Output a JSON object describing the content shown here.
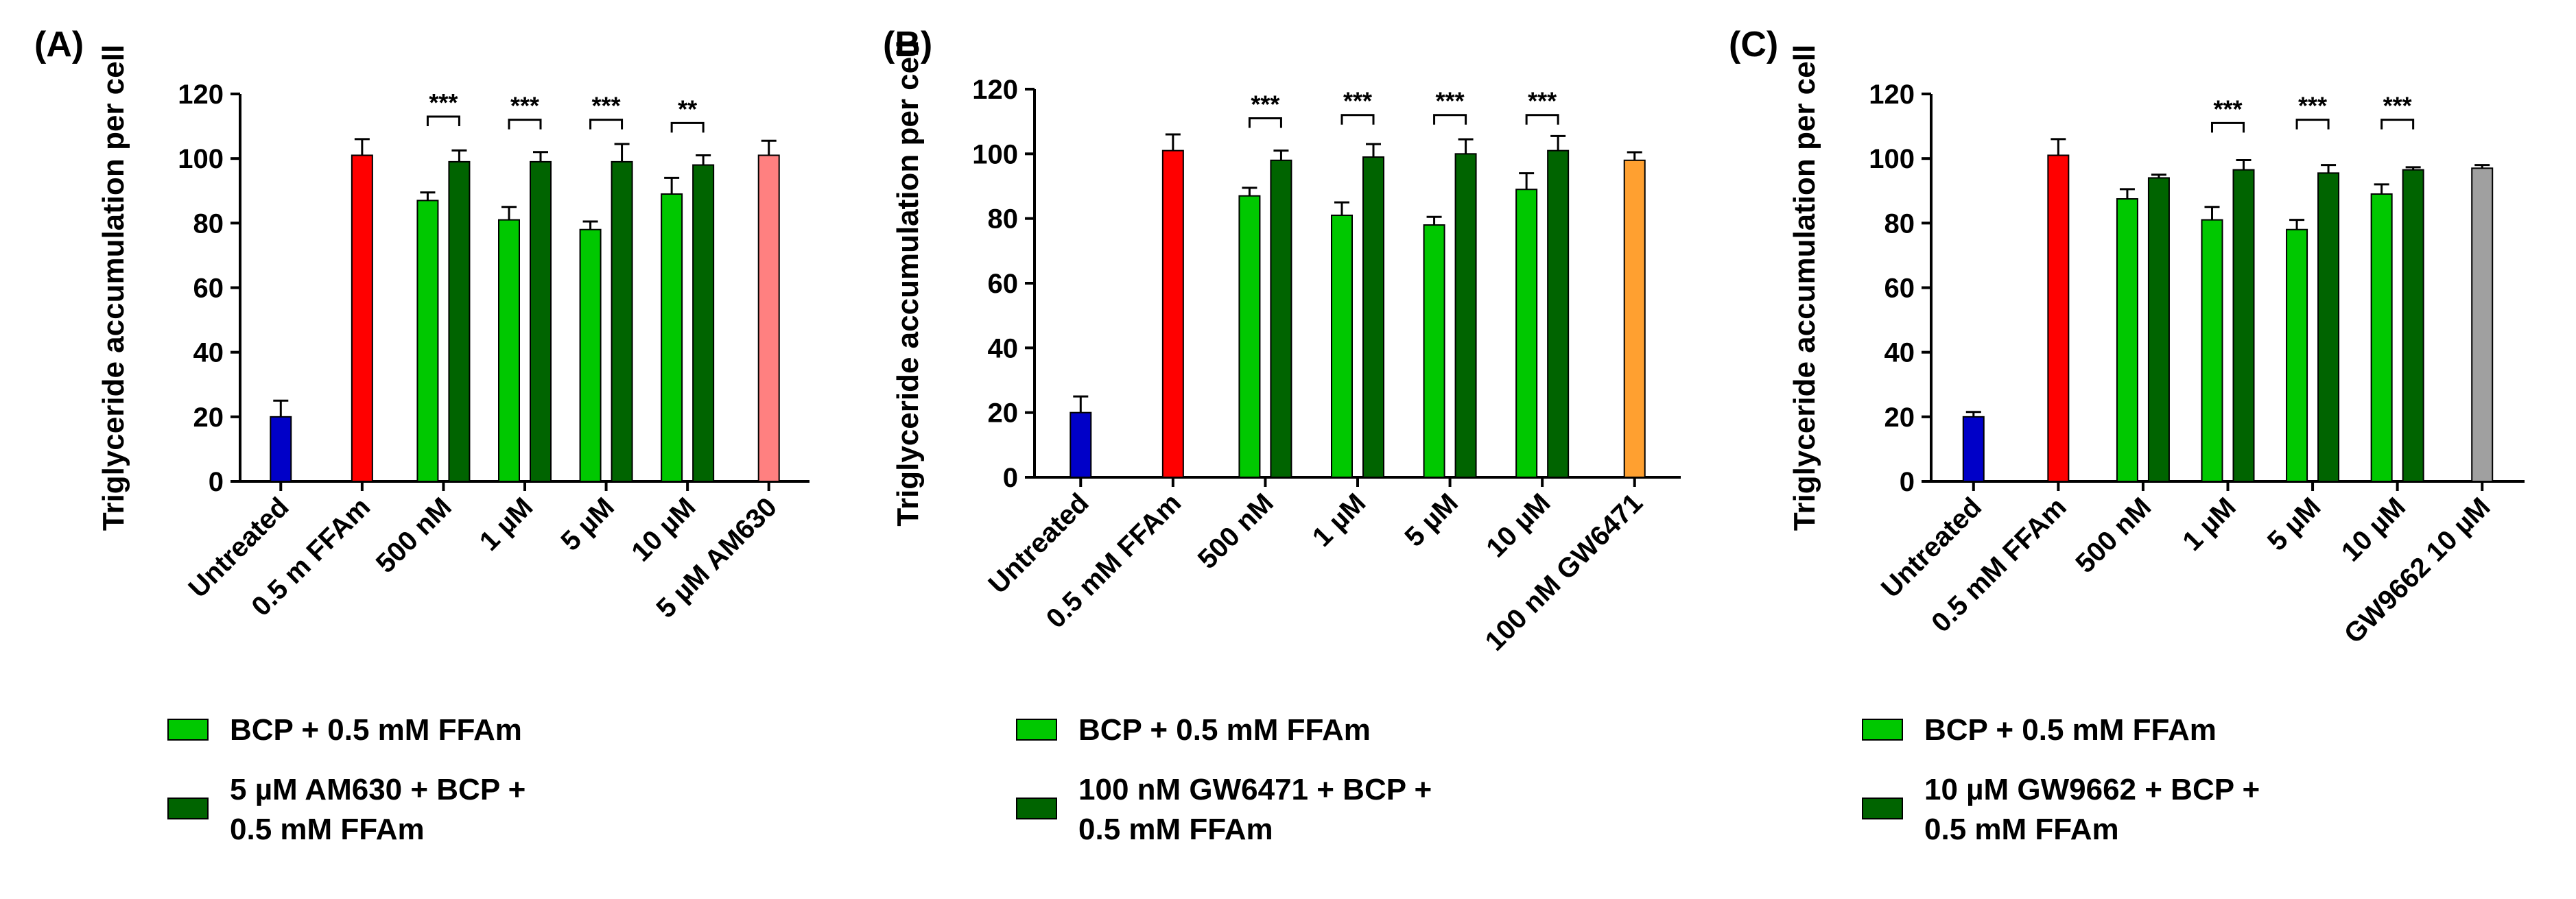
{
  "colors": {
    "untreated": "#0000c8",
    "ffam": "#ff0000",
    "bcp": "#00c800",
    "combo": "#006400",
    "am630": "#ff8080",
    "gw6471": "#ffa030",
    "gw9662": "#a0a0a0",
    "axis": "#000000"
  },
  "chart_data": [
    {
      "panel": "(A)",
      "type": "bar",
      "ylabel": "Triglyceride accumulation per cell",
      "ylim": [
        0,
        120
      ],
      "yticks": [
        "0",
        "20",
        "40",
        "60",
        "80",
        "100",
        "120"
      ],
      "categories": [
        "Untreated",
        "0.5 m FFAm",
        "500 nM",
        "1 µM",
        "5 µM",
        "10 µM",
        "5 µM AM630"
      ],
      "bars": [
        {
          "category": 0,
          "slot": "single",
          "color_key": "untreated",
          "value": 20,
          "error": 5
        },
        {
          "category": 1,
          "slot": "single",
          "color_key": "ffam",
          "value": 101,
          "error": 5
        },
        {
          "category": 2,
          "slot": "left",
          "color_key": "bcp",
          "value": 87,
          "error": 2.5
        },
        {
          "category": 2,
          "slot": "right",
          "color_key": "combo",
          "value": 99,
          "error": 3.5
        },
        {
          "category": 3,
          "slot": "left",
          "color_key": "bcp",
          "value": 81,
          "error": 4
        },
        {
          "category": 3,
          "slot": "right",
          "color_key": "combo",
          "value": 99,
          "error": 3
        },
        {
          "category": 4,
          "slot": "left",
          "color_key": "bcp",
          "value": 78,
          "error": 2.5
        },
        {
          "category": 4,
          "slot": "right",
          "color_key": "combo",
          "value": 99,
          "error": 5.5
        },
        {
          "category": 5,
          "slot": "left",
          "color_key": "bcp",
          "value": 89,
          "error": 5
        },
        {
          "category": 5,
          "slot": "right",
          "color_key": "combo",
          "value": 98,
          "error": 3
        },
        {
          "category": 6,
          "slot": "single",
          "color_key": "am630",
          "value": 101,
          "error": 4.5
        }
      ],
      "significance": [
        {
          "category": 2,
          "label": "***",
          "level": 113
        },
        {
          "category": 3,
          "label": "***",
          "level": 112
        },
        {
          "category": 4,
          "label": "***",
          "level": 112
        },
        {
          "category": 5,
          "label": "**",
          "level": 111
        }
      ],
      "legend": [
        {
          "color_key": "bcp",
          "lines": [
            "BCP + 0.5 mM FFAm"
          ]
        },
        {
          "color_key": "combo",
          "lines": [
            "5 µM AM630 + BCP +",
            "0.5 mM FFAm"
          ]
        }
      ]
    },
    {
      "panel": "(B)",
      "type": "bar",
      "ylabel": "Triglyceride accumulation per cell",
      "ylim": [
        0,
        120
      ],
      "yticks": [
        "0",
        "20",
        "40",
        "60",
        "80",
        "100",
        "120"
      ],
      "categories": [
        "Untreated",
        "0.5 mM FFAm",
        "500 nM",
        "1 µM",
        "5 µM",
        "10 µM",
        "100 nM GW6471"
      ],
      "bars": [
        {
          "category": 0,
          "slot": "single",
          "color_key": "untreated",
          "value": 20,
          "error": 5
        },
        {
          "category": 1,
          "slot": "single",
          "color_key": "ffam",
          "value": 101,
          "error": 5
        },
        {
          "category": 2,
          "slot": "left",
          "color_key": "bcp",
          "value": 87,
          "error": 2.5
        },
        {
          "category": 2,
          "slot": "right",
          "color_key": "combo",
          "value": 98,
          "error": 3
        },
        {
          "category": 3,
          "slot": "left",
          "color_key": "bcp",
          "value": 81,
          "error": 4
        },
        {
          "category": 3,
          "slot": "right",
          "color_key": "combo",
          "value": 99,
          "error": 4
        },
        {
          "category": 4,
          "slot": "left",
          "color_key": "bcp",
          "value": 78,
          "error": 2.5
        },
        {
          "category": 4,
          "slot": "right",
          "color_key": "combo",
          "value": 100,
          "error": 4.5
        },
        {
          "category": 5,
          "slot": "left",
          "color_key": "bcp",
          "value": 89,
          "error": 5
        },
        {
          "category": 5,
          "slot": "right",
          "color_key": "combo",
          "value": 101,
          "error": 4.5
        },
        {
          "category": 6,
          "slot": "single",
          "color_key": "gw6471",
          "value": 98,
          "error": 2.5
        }
      ],
      "significance": [
        {
          "category": 2,
          "label": "***",
          "level": 111
        },
        {
          "category": 3,
          "label": "***",
          "level": 112
        },
        {
          "category": 4,
          "label": "***",
          "level": 112
        },
        {
          "category": 5,
          "label": "***",
          "level": 112
        }
      ],
      "legend": [
        {
          "color_key": "bcp",
          "lines": [
            "BCP + 0.5 mM FFAm"
          ]
        },
        {
          "color_key": "combo",
          "lines": [
            "100 nM GW6471 + BCP +",
            "0.5 mM FFAm"
          ]
        }
      ]
    },
    {
      "panel": "(C)",
      "type": "bar",
      "ylabel": "Triglyceride accumulation per cell",
      "ylim": [
        0,
        120
      ],
      "yticks": [
        "0",
        "20",
        "40",
        "60",
        "80",
        "100",
        "120"
      ],
      "categories": [
        "Untreated",
        "0.5 mM FFAm",
        "500 nM",
        "1 µM",
        "5 µM",
        "10 µM",
        "GW9662 10 µM"
      ],
      "bars": [
        {
          "category": 0,
          "slot": "single",
          "color_key": "untreated",
          "value": 20,
          "error": 1.5
        },
        {
          "category": 1,
          "slot": "single",
          "color_key": "ffam",
          "value": 101,
          "error": 5
        },
        {
          "category": 2,
          "slot": "left",
          "color_key": "bcp",
          "value": 87.5,
          "error": 3
        },
        {
          "category": 2,
          "slot": "right",
          "color_key": "combo",
          "value": 94,
          "error": 1
        },
        {
          "category": 3,
          "slot": "left",
          "color_key": "bcp",
          "value": 81,
          "error": 4
        },
        {
          "category": 3,
          "slot": "right",
          "color_key": "combo",
          "value": 96.5,
          "error": 3
        },
        {
          "category": 4,
          "slot": "left",
          "color_key": "bcp",
          "value": 78,
          "error": 3
        },
        {
          "category": 4,
          "slot": "right",
          "color_key": "combo",
          "value": 95.5,
          "error": 2.5
        },
        {
          "category": 5,
          "slot": "left",
          "color_key": "bcp",
          "value": 89,
          "error": 3
        },
        {
          "category": 5,
          "slot": "right",
          "color_key": "combo",
          "value": 96.5,
          "error": 0.8
        },
        {
          "category": 6,
          "slot": "single",
          "color_key": "gw9662",
          "value": 97,
          "error": 1
        }
      ],
      "significance": [
        {
          "category": 3,
          "label": "***",
          "level": 111
        },
        {
          "category": 4,
          "label": "***",
          "level": 112
        },
        {
          "category": 5,
          "label": "***",
          "level": 112
        }
      ],
      "legend": [
        {
          "color_key": "bcp",
          "lines": [
            "BCP + 0.5 mM FFAm"
          ]
        },
        {
          "color_key": "combo",
          "lines": [
            "10 µM GW9662 + BCP +",
            "0.5 mM FFAm"
          ]
        }
      ]
    }
  ]
}
